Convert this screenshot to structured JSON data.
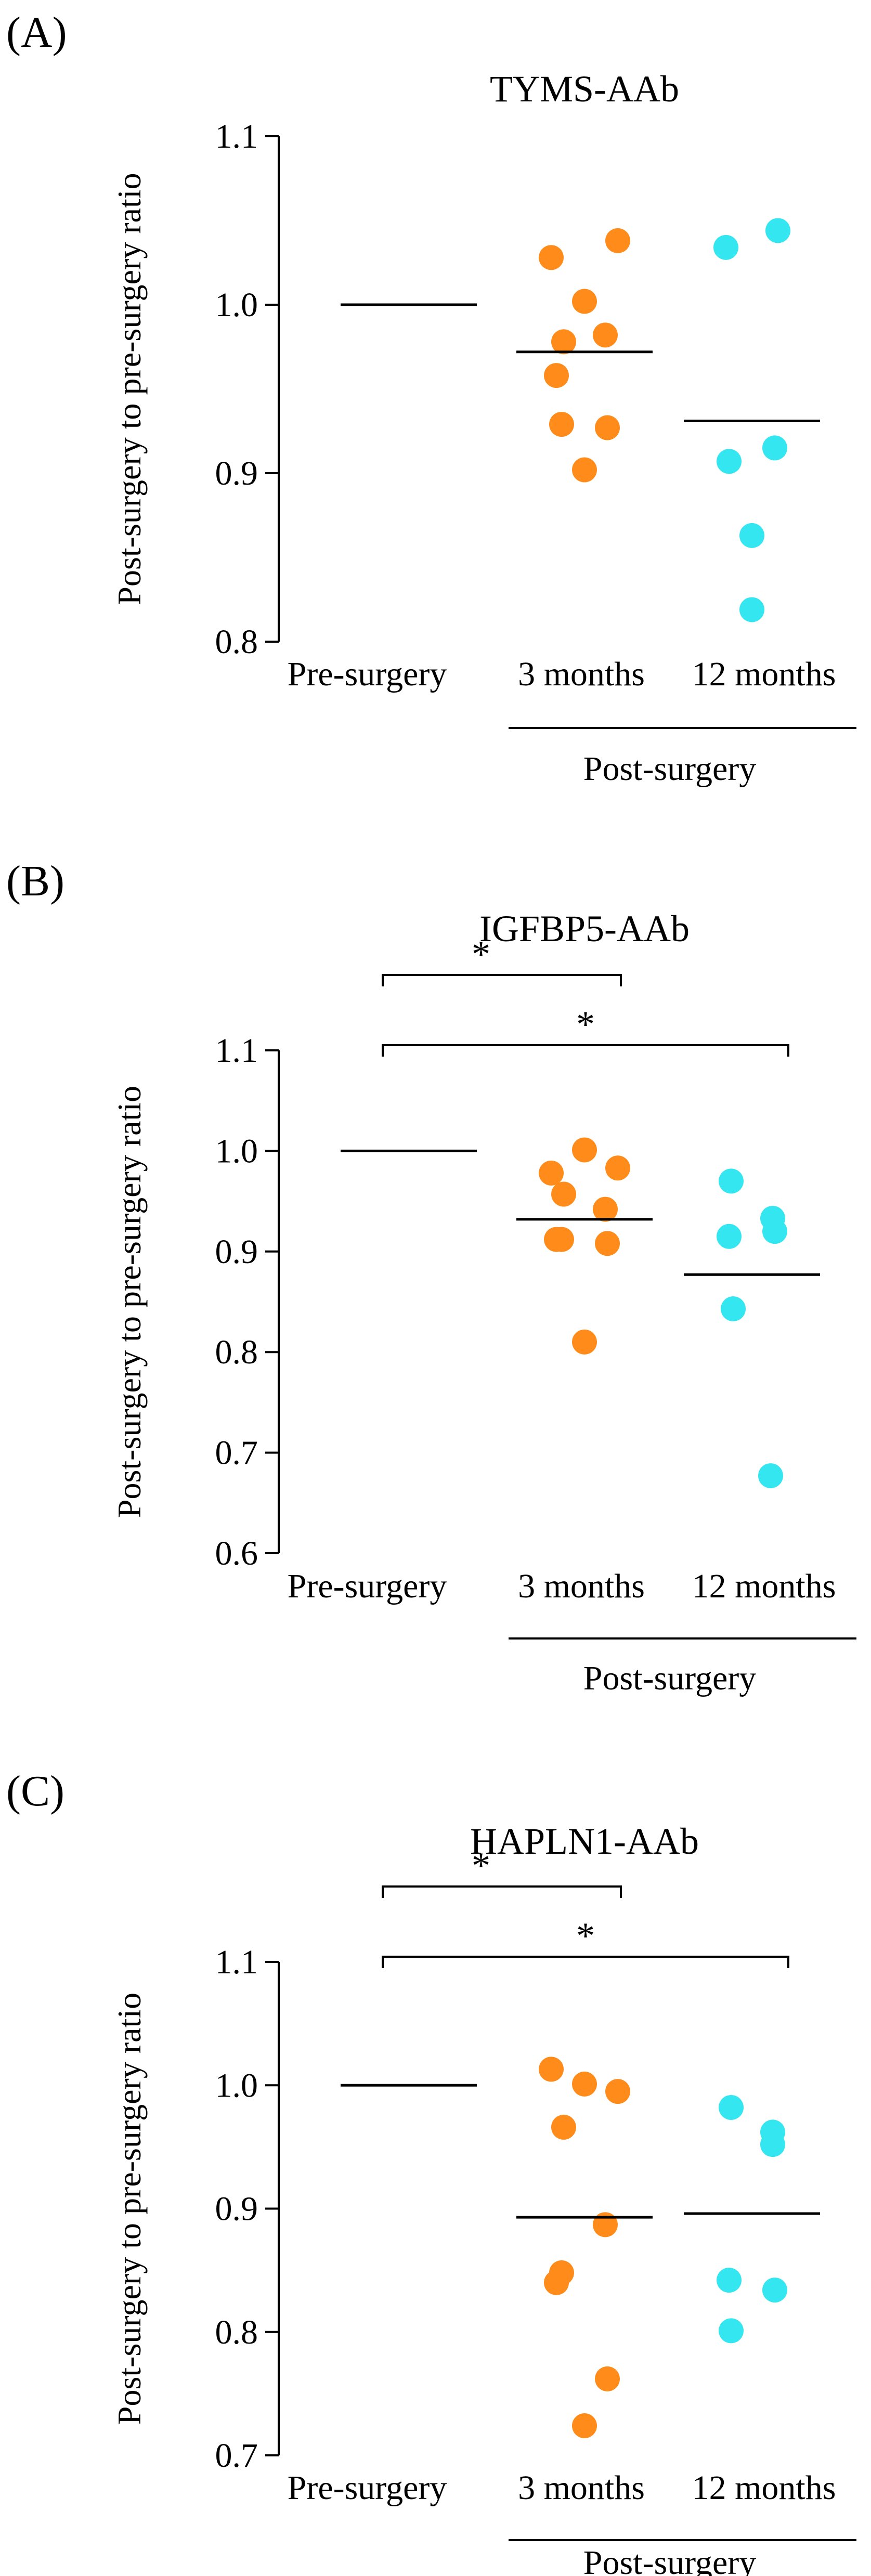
{
  "colors": {
    "three_months": "#ff8c1a",
    "twelve_months": "#33e6f0",
    "axis": "#000000"
  },
  "chart_data": [
    {
      "type": "scatter",
      "panel_label": "(A)",
      "title": "TYMS-AAb",
      "ylabel": "Post-surgery to pre-surgery ratio",
      "ylim": [
        0.8,
        1.1
      ],
      "yticks": [
        "0.8",
        "0.9",
        "1.0",
        "1.1"
      ],
      "categories": [
        "Pre-surgery",
        "3 months",
        "12 months"
      ],
      "group_label": "Post-surgery",
      "series": [
        {
          "name": "Pre-surgery",
          "values": [],
          "mean": 1.0
        },
        {
          "name": "3 months",
          "values": [
            1.028,
            1.038,
            1.002,
            0.978,
            0.982,
            0.958,
            0.929,
            0.927,
            0.902
          ],
          "mean": 0.972
        },
        {
          "name": "12 months",
          "values": [
            1.034,
            1.044,
            0.907,
            0.915,
            0.863,
            0.819
          ],
          "mean": 0.931
        }
      ],
      "significance": []
    },
    {
      "type": "scatter",
      "panel_label": "(B)",
      "title": "IGFBP5-AAb",
      "ylabel": "Post-surgery to pre-surgery ratio",
      "ylim": [
        0.6,
        1.1
      ],
      "yticks": [
        "0.6",
        "0.7",
        "0.8",
        "0.9",
        "1.0",
        "1.1"
      ],
      "categories": [
        "Pre-surgery",
        "3 months",
        "12 months"
      ],
      "group_label": "Post-surgery",
      "series": [
        {
          "name": "Pre-surgery",
          "values": [],
          "mean": 1.0
        },
        {
          "name": "3 months",
          "values": [
            0.978,
            0.983,
            1.001,
            0.957,
            0.942,
            0.912,
            0.912,
            0.908,
            0.81
          ],
          "mean": 0.932
        },
        {
          "name": "12 months",
          "values": [
            0.97,
            0.933,
            0.915,
            0.92,
            0.843,
            0.677
          ],
          "mean": 0.877
        }
      ],
      "significance": [
        {
          "from": 0,
          "to": 1,
          "label": "*"
        },
        {
          "from": 0,
          "to": 2,
          "label": "*"
        }
      ]
    },
    {
      "type": "scatter",
      "panel_label": "(C)",
      "title": "HAPLN1-AAb",
      "ylabel": "Post-surgery to pre-surgery ratio",
      "ylim": [
        0.7,
        1.1
      ],
      "yticks": [
        "0.7",
        "0.8",
        "0.9",
        "1.0",
        "1.1"
      ],
      "categories": [
        "Pre-surgery",
        "3 months",
        "12 months"
      ],
      "group_label": "Post-surgery",
      "series": [
        {
          "name": "Pre-surgery",
          "values": [],
          "mean": 1.0
        },
        {
          "name": "3 months",
          "values": [
            1.013,
            0.995,
            1.001,
            0.966,
            0.887,
            0.84,
            0.848,
            0.762,
            0.724
          ],
          "mean": 0.893
        },
        {
          "name": "12 months",
          "values": [
            0.982,
            0.962,
            0.952,
            0.842,
            0.834,
            0.801
          ],
          "mean": 0.896
        }
      ],
      "significance": [
        {
          "from": 0,
          "to": 1,
          "label": "*"
        },
        {
          "from": 0,
          "to": 2,
          "label": "*"
        }
      ]
    }
  ]
}
